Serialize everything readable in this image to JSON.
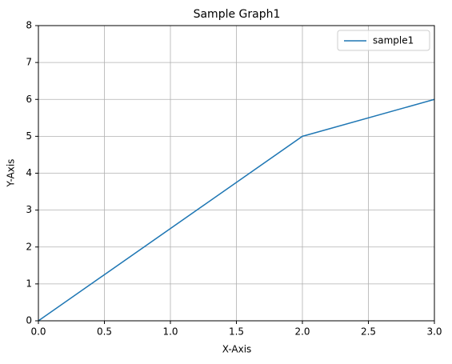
{
  "chart_data": {
    "type": "line",
    "title": "Sample Graph1",
    "xlabel": "X-Axis",
    "ylabel": "Y-Axis",
    "x": [
      0,
      2,
      3
    ],
    "series": [
      {
        "name": "sample1",
        "color": "#1f77b4",
        "values": [
          0,
          5,
          6
        ]
      }
    ],
    "xlim": [
      0,
      3
    ],
    "ylim": [
      0,
      8
    ],
    "xticks": [
      {
        "value": 0,
        "label": "0.0"
      },
      0.5,
      {
        "value": 1,
        "label": "1.0"
      },
      1.5,
      {
        "value": 2,
        "label": "2.0"
      },
      2.5,
      {
        "value": 3,
        "label": "3.0"
      }
    ],
    "yticks": [
      0,
      1,
      2,
      3,
      4,
      5,
      6,
      7,
      8
    ],
    "grid": true,
    "legend": "upper right"
  }
}
